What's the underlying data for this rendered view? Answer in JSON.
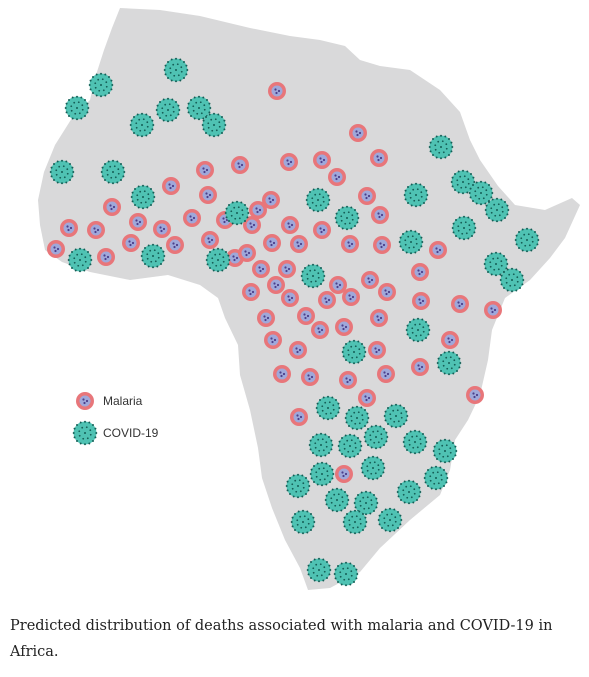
{
  "chart_data": {
    "type": "scatter",
    "title": "",
    "legend_position": "left-middle",
    "series": [
      {
        "name": "Malaria",
        "marker": "red-circle-icon"
      },
      {
        "name": "COVID-19",
        "marker": "virus-icon"
      }
    ]
  },
  "legend": {
    "items": [
      {
        "label": "Malaria",
        "icon": "malaria-marker-icon"
      },
      {
        "label": "COVID-19",
        "icon": "covid-marker-icon"
      }
    ]
  },
  "caption": "Predicted distribution of deaths associated with malaria and COVID-19 in Africa.",
  "colors": {
    "land": "#d9d9da",
    "malaria_fill": "#e8767a",
    "malaria_core": "#9fa8da",
    "malaria_dot": "#4b3f8c",
    "covid_fill": "#4fc2b3",
    "covid_dot": "#155e56"
  }
}
